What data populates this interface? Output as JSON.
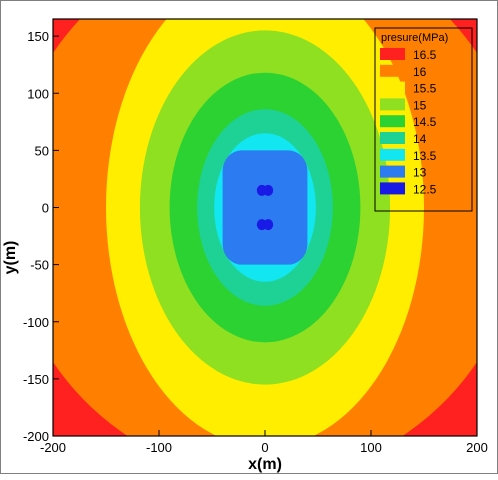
{
  "chart_data": {
    "type": "heatmap",
    "subtype": "filled-contour",
    "title": "",
    "xlabel": "x(m)",
    "ylabel": "y(m)",
    "xlim": [
      -200,
      200
    ],
    "ylim": [
      -200,
      165
    ],
    "x_ticks": [
      -200,
      -100,
      0,
      100,
      200
    ],
    "x_tick_labels": [
      "-200",
      "-100",
      "0",
      "100",
      "200"
    ],
    "y_ticks": [
      150,
      100,
      50,
      0,
      -50,
      -100,
      -150,
      -200
    ],
    "y_tick_labels": [
      "150",
      "100",
      "50",
      "0",
      "-50",
      "-100",
      "-150",
      "-200"
    ],
    "legend": {
      "title": "presure(MPa)",
      "position": "top-right",
      "levels": [
        {
          "label": "16.5",
          "color": "#ff2020"
        },
        {
          "label": "16",
          "color": "#ff8000"
        },
        {
          "label": "15.5",
          "color": "#ffee00"
        },
        {
          "label": "15",
          "color": "#8fe020"
        },
        {
          "label": "14.5",
          "color": "#2cd232"
        },
        {
          "label": "14",
          "color": "#1ed296"
        },
        {
          "label": "13.5",
          "color": "#12e6f0"
        },
        {
          "label": "13",
          "color": "#2d7bf0"
        },
        {
          "label": "12.5",
          "color": "#1a1ae6"
        }
      ]
    },
    "contours": [
      {
        "level": 16,
        "color": "#ff8000",
        "fill": "background",
        "cx": 0,
        "cy": 0,
        "rx": 200,
        "ry": 200
      },
      {
        "level": 15.5,
        "color": "#ffee00",
        "cx": 0,
        "cy": 0,
        "rx": 150,
        "ry": 210
      },
      {
        "level": 15,
        "color": "#8fe020",
        "cx": 0,
        "cy": 0,
        "rx": 118,
        "ry": 155
      },
      {
        "level": 14.5,
        "color": "#2cd232",
        "cx": 0,
        "cy": 0,
        "rx": 90,
        "ry": 118
      },
      {
        "level": 14,
        "color": "#1ed296",
        "cx": 0,
        "cy": 0,
        "rx": 64,
        "ry": 86
      },
      {
        "level": 13.5,
        "color": "#12e6f0",
        "cx": 0,
        "cy": 0,
        "rx": 48,
        "ry": 65
      },
      {
        "level": 13,
        "color": "#2d7bf0",
        "shape": "rounded-rect",
        "x": [
          -40,
          40
        ],
        "y": [
          -50,
          50
        ],
        "r": 18
      }
    ],
    "corner_color": "#ff2020",
    "minima": [
      {
        "x": -3,
        "y": 15,
        "color": "#1a1ae6"
      },
      {
        "x": 3,
        "y": 15,
        "color": "#1a1ae6"
      },
      {
        "x": -3,
        "y": -15,
        "color": "#1a1ae6"
      },
      {
        "x": 3,
        "y": -15,
        "color": "#1a1ae6"
      }
    ],
    "grid": false
  }
}
